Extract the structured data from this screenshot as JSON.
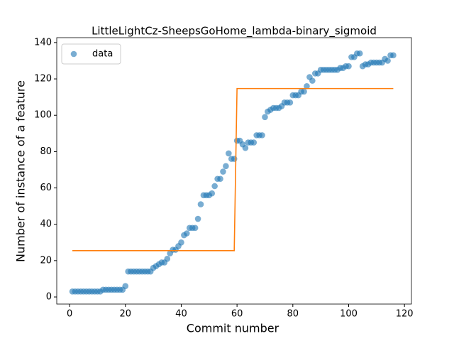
{
  "chart_data": {
    "type": "scatter",
    "title": "LittleLightCz-SheepsGoHome_lambda-binary_sigmoid",
    "xlabel": "Commit number",
    "ylabel": "Number of instance of a feature",
    "xlim": [
      -4.6,
      122.5
    ],
    "ylim": [
      -3.9,
      142.7
    ],
    "xticks": [
      0,
      20,
      40,
      60,
      80,
      100,
      120
    ],
    "yticks": [
      0,
      20,
      40,
      60,
      80,
      100,
      120,
      140
    ],
    "legend": "upper left",
    "series": [
      {
        "name": "data",
        "type": "scatter",
        "color": "#1f77b4",
        "x": [
          1,
          2,
          3,
          4,
          5,
          6,
          7,
          8,
          9,
          10,
          11,
          12,
          13,
          14,
          15,
          16,
          17,
          18,
          19,
          20,
          21,
          22,
          23,
          24,
          25,
          26,
          27,
          28,
          29,
          30,
          31,
          32,
          33,
          34,
          35,
          36,
          37,
          38,
          39,
          40,
          41,
          42,
          43,
          44,
          45,
          46,
          47,
          48,
          49,
          50,
          51,
          52,
          53,
          54,
          55,
          56,
          57,
          58,
          59,
          60,
          61,
          62,
          63,
          64,
          65,
          66,
          67,
          68,
          69,
          70,
          71,
          72,
          73,
          74,
          75,
          76,
          77,
          78,
          79,
          80,
          81,
          82,
          83,
          84,
          85,
          86,
          87,
          88,
          89,
          90,
          91,
          92,
          93,
          94,
          95,
          96,
          97,
          98,
          99,
          100,
          101,
          102,
          103,
          104,
          105,
          106,
          107,
          108,
          109,
          110,
          111,
          112,
          113,
          114,
          115,
          116
        ],
        "values": [
          3,
          3,
          3,
          3,
          3,
          3,
          3,
          3,
          3,
          3,
          3,
          4,
          4,
          4,
          4,
          4,
          4,
          4,
          4,
          6,
          14,
          14,
          14,
          14,
          14,
          14,
          14,
          14,
          14,
          16,
          17,
          18,
          19,
          19,
          21,
          24,
          26,
          26,
          28,
          30,
          34,
          35,
          38,
          38,
          38,
          43,
          51,
          56,
          56,
          56,
          57,
          61,
          65,
          65,
          69,
          72,
          79,
          76,
          76,
          86,
          86,
          84,
          82,
          85,
          85,
          85,
          89,
          89,
          89,
          99,
          102,
          103,
          104,
          104,
          104,
          105,
          107,
          107,
          107,
          111,
          111,
          111,
          113,
          113,
          116,
          121,
          119,
          123,
          123,
          125,
          125,
          125,
          125,
          125,
          125,
          125,
          126,
          126,
          127,
          127,
          132,
          132,
          134,
          134,
          127,
          128,
          128,
          129,
          129,
          129,
          129,
          129,
          131,
          130,
          133,
          133
        ]
      },
      {
        "type": "line",
        "color": "#ff7f0e",
        "x": [
          1,
          59,
          60,
          116
        ],
        "values": [
          25.5,
          25.5,
          114.7,
          114.7
        ]
      }
    ]
  }
}
